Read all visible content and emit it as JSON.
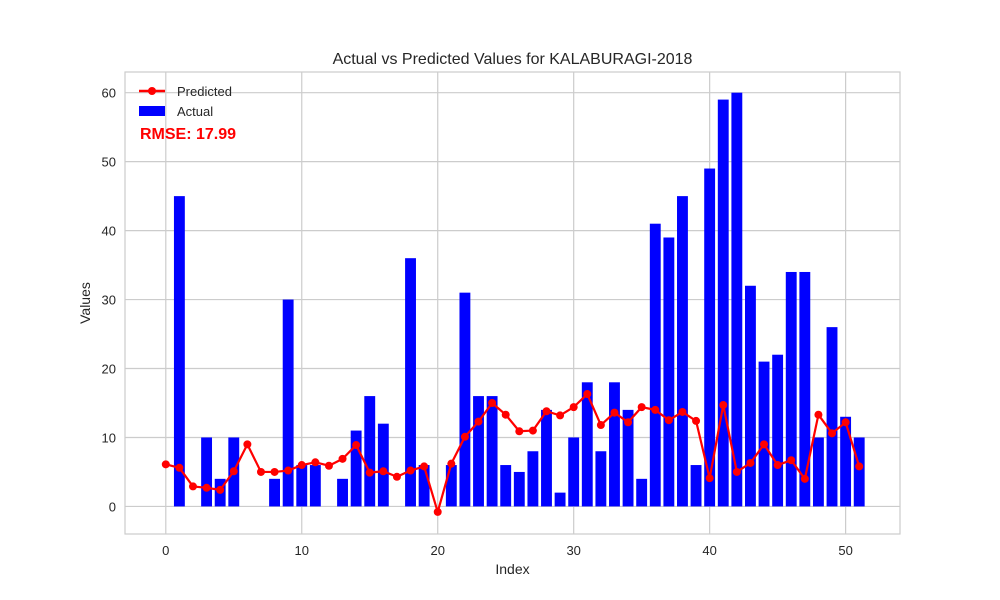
{
  "chart_data": {
    "type": "bar",
    "title": "Actual vs Predicted Values for KALABURAGI-2018",
    "xlabel": "Index",
    "ylabel": "Values",
    "xlim": [
      -3,
      54
    ],
    "ylim": [
      -4,
      63
    ],
    "xticks": [
      0,
      10,
      20,
      30,
      40,
      50
    ],
    "yticks": [
      0,
      10,
      20,
      30,
      40,
      50,
      60
    ],
    "grid": true,
    "legend_position": "top-left",
    "annotation": "RMSE: 17.99",
    "series": [
      {
        "name": "Predicted",
        "type": "line",
        "color": "#ff0000",
        "x": [
          0,
          1,
          2,
          3,
          4,
          5,
          6,
          7,
          8,
          9,
          10,
          11,
          12,
          13,
          14,
          15,
          16,
          17,
          18,
          19,
          20,
          21,
          22,
          23,
          24,
          25,
          26,
          27,
          28,
          29,
          30,
          31,
          32,
          33,
          34,
          35,
          36,
          37,
          38,
          39,
          40,
          41,
          42,
          43,
          44,
          45,
          46,
          47,
          48,
          49,
          50,
          51
        ],
        "values": [
          6.1,
          5.6,
          2.9,
          2.7,
          2.4,
          5.1,
          9.0,
          5.0,
          5.0,
          5.2,
          6.0,
          6.4,
          5.9,
          6.9,
          8.9,
          4.9,
          5.1,
          4.3,
          5.2,
          5.8,
          -0.8,
          6.2,
          10.1,
          12.3,
          15.0,
          13.3,
          10.9,
          11.0,
          13.8,
          13.2,
          14.4,
          16.3,
          11.8,
          13.6,
          12.2,
          14.4,
          14.0,
          12.5,
          13.7,
          12.4,
          4.1,
          14.7,
          5.0,
          6.3,
          9.0,
          6.0,
          6.7,
          4.0,
          13.3,
          10.6,
          12.2,
          5.8
        ]
      },
      {
        "name": "Actual",
        "type": "bar",
        "color": "#0000ff",
        "x": [
          0,
          1,
          2,
          3,
          4,
          5,
          6,
          7,
          8,
          9,
          10,
          11,
          12,
          13,
          14,
          15,
          16,
          17,
          18,
          19,
          20,
          21,
          22,
          23,
          24,
          25,
          26,
          27,
          28,
          29,
          30,
          31,
          32,
          33,
          34,
          35,
          36,
          37,
          38,
          39,
          40,
          41,
          42,
          43,
          44,
          45,
          46,
          47,
          48,
          49,
          50,
          51
        ],
        "values": [
          0,
          45,
          0,
          10,
          4,
          10,
          0,
          0,
          4,
          30,
          6,
          6,
          0,
          4,
          11,
          16,
          12,
          0,
          36,
          6,
          0,
          6,
          31,
          16,
          16,
          6,
          5,
          8,
          14,
          2,
          10,
          18,
          8,
          18,
          14,
          4,
          41,
          39,
          45,
          6,
          49,
          59,
          60,
          32,
          21,
          22,
          34,
          34,
          10,
          26,
          13,
          10
        ]
      }
    ]
  }
}
